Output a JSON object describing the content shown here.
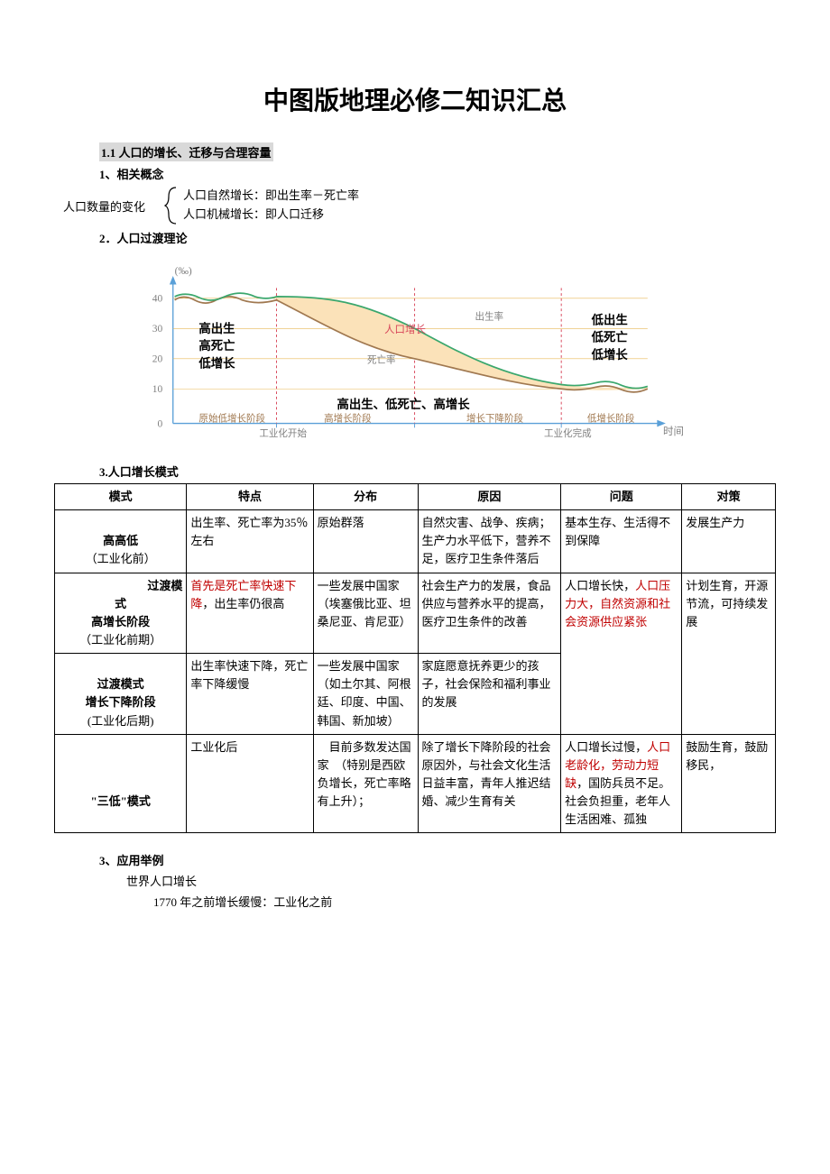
{
  "title": "中图版地理必修二知识汇总",
  "section1": {
    "heading": "1.1 人口的增长、迁移与合理容量",
    "sub1_label": "1、相关概念",
    "concepts_left": "人口数量的变化",
    "concepts_line1": "人口自然增长：即出生率－死亡率",
    "concepts_line2": "人口机械增长：即人口迁移",
    "sub2_label": "2．人口过渡理论",
    "sub3_label": "3.人口增长模式",
    "sub4_label": "3、应用举例",
    "app_line1": "世界人口增长",
    "app_line2": "1770 年之前增长缓慢：工业化之前"
  },
  "chart": {
    "y_unit": "(‰)",
    "y_ticks": [
      "0",
      "10",
      "20",
      "30",
      "40"
    ],
    "y_positions": [
      195,
      155,
      120,
      85,
      50
    ],
    "axis_color": "#5aa0d8",
    "birth_line_color": "#3aa76d",
    "death_line_color": "#a07850",
    "fill_color": "#fbe2b9",
    "grid_color": "#e8b858",
    "divider_color": "#d8465a",
    "stage_labels": [
      "原始低增长阶段",
      "高增长阶段",
      "增长下降阶段",
      "低增长阶段"
    ],
    "stage_x": [
      80,
      230,
      400,
      550
    ],
    "industrial_start": "工业化开始",
    "industrial_end": "工业化完成",
    "stage1_text": [
      "高出生",
      "高死亡",
      "低增长"
    ],
    "stage4_text": [
      "低出生",
      "低死亡",
      "低增长"
    ],
    "middle_text": "高出生、低死亡、高增长",
    "birth_label": "出生率",
    "death_label": "死亡率",
    "growth_label": "人口增长",
    "x_axis_label": "时间"
  },
  "table": {
    "headers": [
      "模式",
      "特点",
      "分布",
      "原因",
      "问题",
      "对策"
    ],
    "rows": [
      {
        "model_html": "<br><b>高高低</b><br>（工业化前）",
        "feature": "出生率、死亡率为35％左右",
        "dist": "原始群落",
        "reason": "自然灾害、战争、疾病；生产力水平低下，营养不足，医疗卫生条件落后",
        "problem": "基本生存、生活得不到保障",
        "solution": "发展生产力"
      },
      {
        "model_html": "<span style='float:right'><b>过渡模</b></span><br><b>式</b><br><b>高增长阶段</b><br>（工业化前期）",
        "feature_html": "<span class='red'>首先是死亡率快速下降</span>，出生率仍很高",
        "dist": "一些发展中国家（埃塞俄比亚、坦桑尼亚、肯尼亚）",
        "reason": "社会生产力的发展，食品供应与营养水平的提高，医疗卫生条件的改善",
        "problem_rowspan": 2,
        "problem_html": "人口增长快，<span class='red'>人口压力大，自然资源和社会资源供应紧张</span>",
        "solution_rowspan": 2,
        "solution": "计划生育，开源节流，可持续发展"
      },
      {
        "model_html": "<br><b>过渡模式</b><br><b>增长下降阶段</b><br>(工业化后期)",
        "feature": "出生率快速下降，死亡率下降缓慢",
        "dist": "一些发展中国家（如土尔其、阿根廷、印度、中国、韩国、新加坡）",
        "reason": "家庭愿意抚养更少的孩子，社会保险和福利事业的发展"
      },
      {
        "model_html": "<br><br><b>\"三低\"模式</b>",
        "feature": "工业化后",
        "dist": "　目前多数发达国家　（特别是西欧负增长，死亡率略有上升）；",
        "reason": "除了增长下降阶段的社会原因外，与社会文化生活日益丰富，青年人推迟结婚、减少生育有关",
        "problem_html": "人口增长过慢，<span class='red'>人口老龄化，劳动力短缺</span>，国防兵员不足。社会负担重，老年人生活困难、孤独",
        "solution": "鼓励生育，鼓励移民，"
      }
    ]
  }
}
